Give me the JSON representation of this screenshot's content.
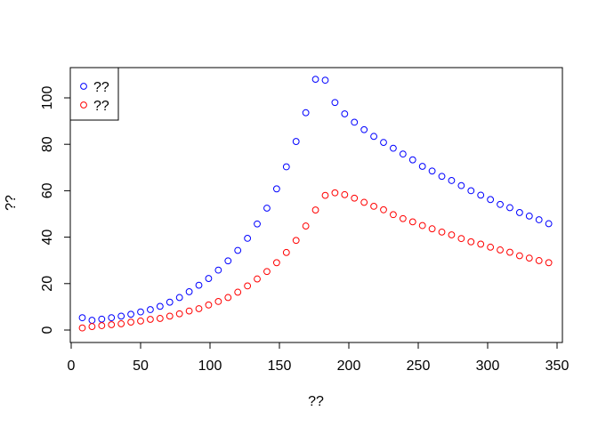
{
  "chart_data": {
    "type": "scatter",
    "title": "",
    "xlabel": "??",
    "ylabel": "??",
    "xlim": [
      0,
      350
    ],
    "ylim": [
      0,
      110
    ],
    "x_ticks": [
      "0",
      "50",
      "100",
      "150",
      "200",
      "250",
      "300",
      "350"
    ],
    "y_ticks": [
      "0",
      "20",
      "40",
      "60",
      "80",
      "100"
    ],
    "legend_position": "top-left",
    "marker": "open-circle",
    "x": [
      8,
      15,
      22,
      29,
      36,
      43,
      50,
      57,
      64,
      71,
      78,
      85,
      92,
      99,
      106,
      113,
      120,
      127,
      134,
      141,
      148,
      155,
      162,
      169,
      176,
      183,
      190,
      197,
      204,
      211,
      218,
      225,
      232,
      239,
      246,
      253,
      260,
      267,
      274,
      281,
      288,
      295,
      302,
      309,
      316,
      323,
      330,
      337,
      344
    ],
    "series": [
      {
        "name": "??",
        "color": "#0000ff",
        "values": [
          5.3,
          4.2,
          4.7,
          5.3,
          6.0,
          6.8,
          7.8,
          8.8,
          10.2,
          12.0,
          14.0,
          16.5,
          19.3,
          22.2,
          25.8,
          29.8,
          34.3,
          39.5,
          45.7,
          52.5,
          60.8,
          70.3,
          81.2,
          93.6,
          108.0,
          107.6,
          98.0,
          93.1,
          89.5,
          86.3,
          83.4,
          80.8,
          78.3,
          75.8,
          73.3,
          70.5,
          68.5,
          66.2,
          64.4,
          62.2,
          60.0,
          58.1,
          56.2,
          54.1,
          52.7,
          50.6,
          49.1,
          47.5,
          45.8
        ]
      },
      {
        "name": "??",
        "color": "#ff0000",
        "values": [
          0.9,
          1.5,
          1.9,
          2.3,
          2.7,
          3.4,
          3.9,
          4.6,
          5.0,
          6.0,
          7.0,
          8.2,
          9.2,
          10.8,
          12.3,
          14.0,
          16.3,
          19.0,
          22.0,
          25.2,
          29.0,
          33.4,
          38.6,
          44.8,
          51.7,
          58.0,
          59.1,
          58.3,
          56.8,
          55.0,
          53.3,
          51.8,
          49.7,
          48.0,
          46.6,
          45.0,
          43.6,
          42.2,
          41.0,
          39.4,
          38.0,
          37.0,
          35.7,
          34.5,
          33.5,
          32.0,
          31.0,
          29.9,
          29.0
        ]
      }
    ]
  }
}
